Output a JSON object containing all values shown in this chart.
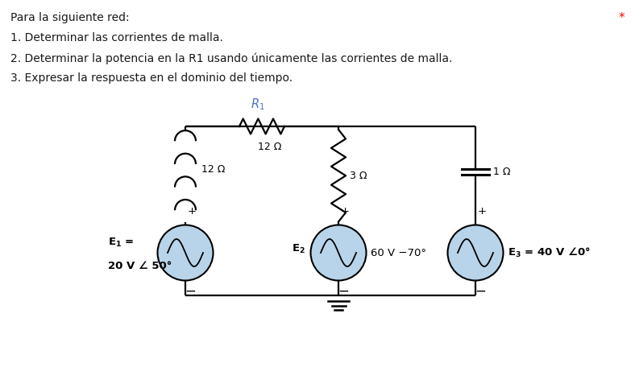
{
  "title_lines": [
    "Para la siguiente red:",
    "1. Determinar las corrientes de malla.",
    "2. Determinar la potencia en la R1 usando únicamente las corrientes de malla.",
    "3. Expresar la respuesta en el dominio del tiempo."
  ],
  "asterisk": "*",
  "R1_label": "$R_1$",
  "R1_value": "12 Ω",
  "L_value": "12 Ω",
  "R2_value": "3 Ω",
  "C_value": "1 Ω",
  "E1_line1": "$\\mathbf{E_1}$ =",
  "E1_line2": "20 V ∠ 50°",
  "E2_label": "$\\mathbf{E_2}$",
  "E2_value": "60 V −70°",
  "E3_value": "$\\mathbf{E_3}$ = 40 V ∠0°",
  "bg_color": "#ffffff",
  "text_color": "#1a1a1a",
  "blue_color": "#4472c4",
  "source_fill": "#b8d4ea",
  "wire_lw": 1.6
}
